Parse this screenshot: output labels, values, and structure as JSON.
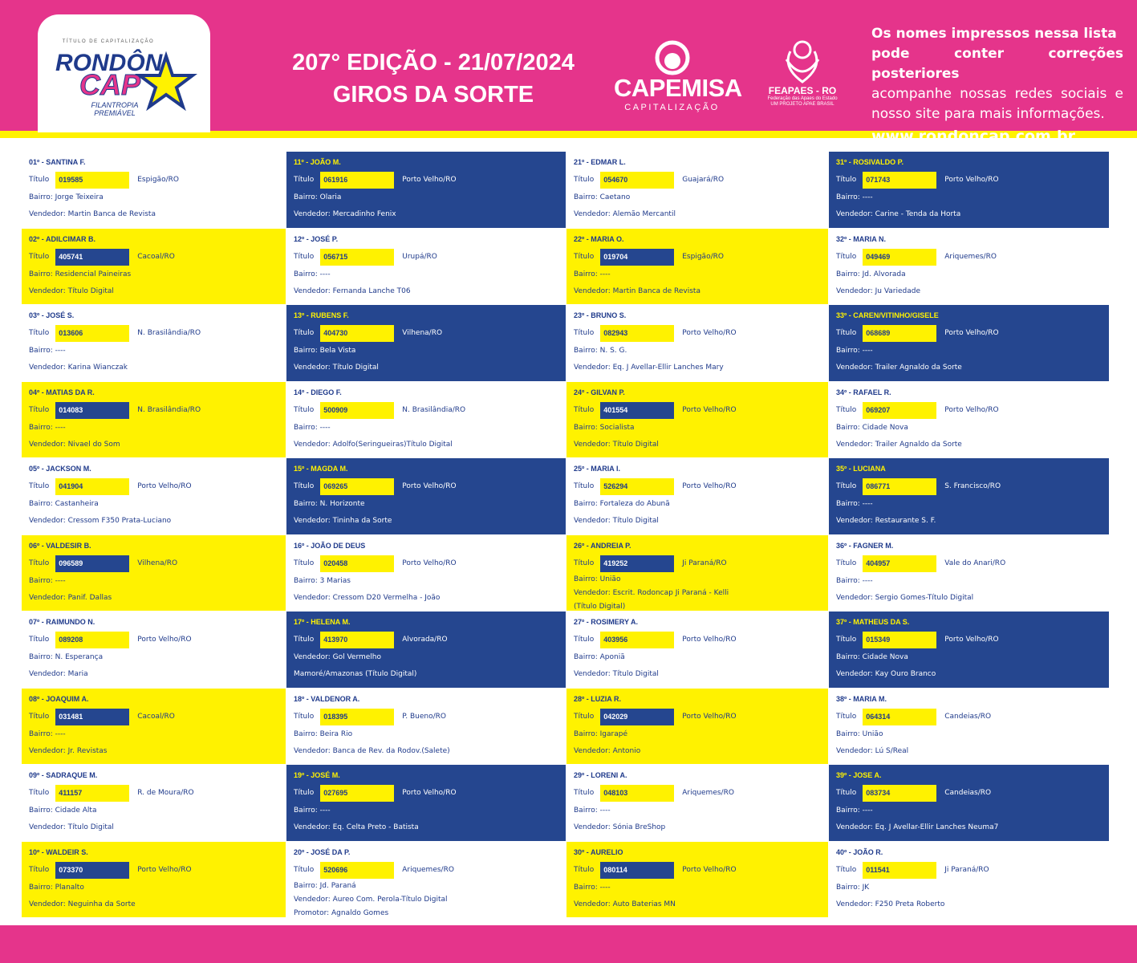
{
  "header": {
    "logo": {
      "top": "TÍTULO DE CAPITALIZAÇÃO",
      "name1": "RONDÔN",
      "name2": "CAP",
      "tagline1": "FILANTROPIA",
      "tagline2": "PREMIÁVEL"
    },
    "edition": "207° EDIÇÃO - 21/07/2024",
    "subtitle": "GIROS DA SORTE",
    "sponsor": {
      "name": "CAPEMISA",
      "sub": "CAPITALIZAÇÃO"
    },
    "partner": {
      "name": "FEAPAES - RO",
      "sub1": "Federação das Apaes do Estado",
      "sub2": "UM PROJETO APAE BRASIL"
    },
    "notice": {
      "line1": "Os nomes impressos nessa lista",
      "line2": "pode conter correções posteriores",
      "line3": "acompanhe nossas redes sociais e nosso site para mais informações.",
      "site": "www.rondoncap.com.br"
    }
  },
  "number_label": "Título",
  "cards": [
    {
      "style": "white",
      "heading": "01º - SANTINA F.",
      "number": "019585",
      "city": "Espigão/RO",
      "lines": [
        "Bairro: Jorge Teixeira",
        "Vendedor: Martin Banca de Revista"
      ]
    },
    {
      "style": "yellow",
      "heading": "02º - ADILCIMAR B.",
      "number": "405741",
      "city": "Cacoal/RO",
      "lines": [
        "Bairro: Residencial Paineiras",
        "Vendedor: Título Digital"
      ]
    },
    {
      "style": "white",
      "heading": "03º - JOSÉ S.",
      "number": "013606",
      "city": "N. Brasilândia/RO",
      "lines": [
        "Bairro: ----",
        "Vendedor: Karina Wianczak"
      ]
    },
    {
      "style": "yellow",
      "heading": "04º - MATIAS DA R.",
      "number": "014083",
      "city": "N. Brasilândia/RO",
      "lines": [
        "Bairro: ----",
        "Vendedor: Nivael do Som"
      ]
    },
    {
      "style": "white",
      "heading": "05º - JACKSON M.",
      "number": "041904",
      "city": "Porto Velho/RO",
      "lines": [
        "Bairro: Castanheira",
        "Vendedor: Cressom F350 Prata-Luciano"
      ]
    },
    {
      "style": "yellow",
      "heading": "06º - VALDESIR B.",
      "number": "096589",
      "city": "Vilhena/RO",
      "lines": [
        "Bairro: ----",
        "Vendedor: Panif. Dallas"
      ]
    },
    {
      "style": "white",
      "heading": "07º - RAIMUNDO N.",
      "number": "089208",
      "city": "Porto Velho/RO",
      "lines": [
        "Bairro: N. Esperança",
        "Vendedor: Maria"
      ]
    },
    {
      "style": "yellow",
      "heading": "08º - JOAQUIM A.",
      "number": "031481",
      "city": "Cacoal/RO",
      "lines": [
        "Bairro: ----",
        "Vendedor: Jr. Revistas"
      ]
    },
    {
      "style": "white",
      "heading": "09º - SADRAQUE M.",
      "number": "411157",
      "city": "R. de Moura/RO",
      "lines": [
        "Bairro: Cidade Alta",
        "Vendedor: Título Digital"
      ]
    },
    {
      "style": "yellow",
      "heading": "10º - WALDEIR S.",
      "number": "073370",
      "city": "Porto Velho/RO",
      "lines": [
        "Bairro: Planalto",
        "Vendedor: Neguinha da Sorte"
      ]
    },
    {
      "style": "blue",
      "heading": "11º - JOÃO M.",
      "number": "061916",
      "city": "Porto Velho/RO",
      "lines": [
        "Bairro: Olaria",
        "Vendedor: Mercadinho Fenix"
      ]
    },
    {
      "style": "white",
      "heading": "12º - JOSÉ P.",
      "number": "056715",
      "city": "Urupá/RO",
      "lines": [
        "Bairro: ----",
        "Vendedor: Fernanda Lanche T06"
      ]
    },
    {
      "style": "blue",
      "heading": "13º - RUBENS F.",
      "number": "404730",
      "city": "Vilhena/RO",
      "lines": [
        "Bairro: Bela Vista",
        "Vendedor: Título Digital"
      ]
    },
    {
      "style": "white",
      "heading": "14º - DIEGO F.",
      "number": "500909",
      "city": "N. Brasilândia/RO",
      "lines": [
        "Bairro: ----",
        "Vendedor: Adolfo(Seringueiras)Título Digital"
      ]
    },
    {
      "style": "blue",
      "heading": "15º - MAGDA M.",
      "number": "069265",
      "city": "Porto Velho/RO",
      "lines": [
        "Bairro: N. Horizonte",
        "Vendedor: Tininha da Sorte"
      ]
    },
    {
      "style": "white",
      "heading": "16º - JOÃO DE DEUS",
      "number": "020458",
      "city": "Porto Velho/RO",
      "lines": [
        "Bairro: 3 Marias",
        "Vendedor: Cressom D20 Vermelha - João"
      ]
    },
    {
      "style": "blue",
      "heading": "17º - HELENA M.",
      "number": "413970",
      "city": "Alvorada/RO",
      "lines": [
        "Vendedor: Gol Vermelho",
        "Mamoré/Amazonas (Título Digital)"
      ]
    },
    {
      "style": "white",
      "heading": "18º - VALDENOR A.",
      "number": "018395",
      "city": "P. Bueno/RO",
      "lines": [
        "Bairro: Beira Rio",
        "Vendedor: Banca de Rev. da Rodov.(Salete)"
      ]
    },
    {
      "style": "blue",
      "heading": "19º - JOSÉ M.",
      "number": "027695",
      "city": "Porto Velho/RO",
      "lines": [
        "Bairro: ----",
        "Vendedor: Eq. Celta Preto - Batista"
      ]
    },
    {
      "style": "white",
      "heading": "20º - JOSÉ DA P.",
      "number": "520696",
      "city": "Ariquemes/RO",
      "lines": [
        "Bairro: Jd. Paraná",
        "Vendedor: Aureo Com. Perola-Título Digital",
        "Promotor: Agnaldo Gomes"
      ]
    },
    {
      "style": "white",
      "heading": "21º - EDMAR L.",
      "number": "054670",
      "city": "Guajará/RO",
      "lines": [
        "Bairro: Caetano",
        "Vendedor: Alemão Mercantil"
      ]
    },
    {
      "style": "yellow",
      "heading": "22º - MARIA O.",
      "number": "019704",
      "city": "Espigão/RO",
      "lines": [
        "Bairro: ----",
        "Vendedor: Martin Banca de Revista"
      ]
    },
    {
      "style": "white",
      "heading": "23º - BRUNO S.",
      "number": "082943",
      "city": "Porto Velho/RO",
      "lines": [
        "Bairro: N. S. G.",
        "Vendedor: Eq. J Avellar-Ellir Lanches Mary"
      ]
    },
    {
      "style": "yellow",
      "heading": "24º - GILVAN P.",
      "number": "401554",
      "city": "Porto Velho/RO",
      "lines": [
        "Bairro: Socialista",
        "Vendedor: Título Digital"
      ]
    },
    {
      "style": "white",
      "heading": "25º - MARIA I.",
      "number": "526294",
      "city": "Porto Velho/RO",
      "lines": [
        "Bairro: Fortaleza do Abunã",
        "Vendedor: Título Digital"
      ]
    },
    {
      "style": "yellow",
      "heading": "26º - ANDREIA P.",
      "number": "419252",
      "city": "Ji Paraná/RO",
      "lines": [
        "Bairro: União",
        "Vendedor: Escrit. Rodoncap Ji Paraná - Kelli",
        "(Título Digital)"
      ]
    },
    {
      "style": "white",
      "heading": "27º - ROSIMERY A.",
      "number": "403956",
      "city": "Porto Velho/RO",
      "lines": [
        "Bairro: Aponiã",
        "Vendedor: Título Digital"
      ]
    },
    {
      "style": "yellow",
      "heading": "28º - LUZIA R.",
      "number": "042029",
      "city": "Porto Velho/RO",
      "lines": [
        "Bairro: Igarapé",
        "Vendedor: Antonio"
      ]
    },
    {
      "style": "white",
      "heading": "29º - LORENI A.",
      "number": "048103",
      "city": "Ariquemes/RO",
      "lines": [
        "Bairro: ----",
        "Vendedor: Sónia BreShop"
      ]
    },
    {
      "style": "yellow",
      "heading": "30º - AURELIO",
      "number": "080114",
      "city": "Porto Velho/RO",
      "lines": [
        "Bairro: ----",
        "Vendedor: Auto Baterias MN"
      ]
    },
    {
      "style": "blue",
      "heading": "31º - ROSIVALDO P.",
      "number": "071743",
      "city": "Porto Velho/RO",
      "lines": [
        "Bairro: ----",
        "Vendedor: Carine - Tenda da Horta"
      ]
    },
    {
      "style": "white",
      "heading": "32º - MARIA N.",
      "number": "049469",
      "city": "Ariquemes/RO",
      "lines": [
        "Bairro: Jd. Alvorada",
        "Vendedor: Ju Variedade"
      ]
    },
    {
      "style": "blue",
      "heading": "33º - CAREN/VITINHO/GISELE",
      "number": "068689",
      "city": "Porto Velho/RO",
      "lines": [
        "Bairro: ----",
        "Vendedor: Trailer Agnaldo da Sorte"
      ]
    },
    {
      "style": "white",
      "heading": "34º - RAFAEL R.",
      "number": "069207",
      "city": "Porto Velho/RO",
      "lines": [
        "Bairro: Cidade Nova",
        "Vendedor: Trailer Agnaldo da Sorte"
      ]
    },
    {
      "style": "blue",
      "heading": "35º - LUCIANA",
      "number": "086771",
      "city": "S. Francisco/RO",
      "lines": [
        "Bairro: ----",
        "Vendedor: Restaurante S. F."
      ]
    },
    {
      "style": "white",
      "heading": "36º - FAGNER M.",
      "number": "404957",
      "city": "Vale do Anari/RO",
      "lines": [
        "Bairro: ----",
        "Vendedor: Sergio Gomes-Título Digital"
      ]
    },
    {
      "style": "blue",
      "heading": "37º - MATHEUS DA S.",
      "number": "015349",
      "city": "Porto Velho/RO",
      "lines": [
        "Bairro: Cidade Nova",
        "Vendedor: Kay Ouro Branco"
      ]
    },
    {
      "style": "white",
      "heading": "38º - MARIA M.",
      "number": "064314",
      "city": "Candeias/RO",
      "lines": [
        "Bairro: União",
        "Vendedor: Lú S/Real"
      ]
    },
    {
      "style": "blue",
      "heading": "39º - JOSE A.",
      "number": "083734",
      "city": "Candeias/RO",
      "lines": [
        "Bairro: ----",
        "Vendedor: Eq. J Avellar-Ellir Lanches Neuma7"
      ]
    },
    {
      "style": "white",
      "heading": "40º - JOÃO R.",
      "number": "011541",
      "city": "Ji Paraná/RO",
      "lines": [
        "Bairro: JK",
        "Vendedor: F250 Preta Roberto"
      ]
    }
  ]
}
